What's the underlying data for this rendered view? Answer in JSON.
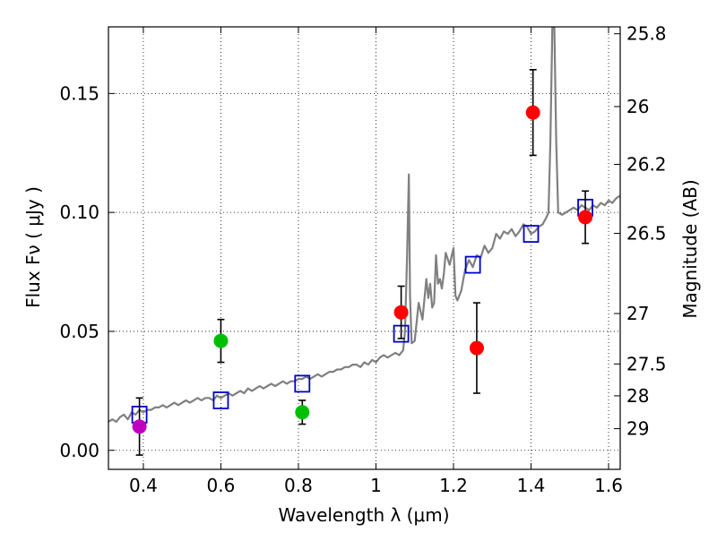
{
  "chart_data": {
    "type": "scatter",
    "xlabel": "Wavelength  λ (μm)",
    "ylabel": "Flux  Fν  ( μJy )",
    "y2label": "Magnitude (AB)",
    "xlim": [
      0.31,
      1.63
    ],
    "ylim": [
      -0.008,
      0.178
    ],
    "x_ticks": [
      0.4,
      0.6,
      0.8,
      1.0,
      1.2,
      1.4,
      1.6
    ],
    "x_tick_labels": [
      "0.4",
      "0.6",
      "0.8",
      "1",
      "1.2",
      "1.4",
      "1.6"
    ],
    "y_ticks": [
      0.0,
      0.05,
      0.1,
      0.15
    ],
    "y_tick_labels": [
      "0.00",
      "0.05",
      "0.10",
      "0.15"
    ],
    "mag_ticks": [
      {
        "label": "25.8",
        "flux": 0.1751
      },
      {
        "label": "26",
        "flux": 0.1445
      },
      {
        "label": "26.2",
        "flux": 0.1202
      },
      {
        "label": "26.5",
        "flux": 0.0912
      },
      {
        "label": "27",
        "flux": 0.0575
      },
      {
        "label": "27.5",
        "flux": 0.0363
      },
      {
        "label": "28",
        "flux": 0.0229
      },
      {
        "label": "29",
        "flux": 0.0091
      }
    ],
    "grid": true,
    "colors": {
      "model": "#808080",
      "model_photometry": "#0000cc",
      "magenta": "#bf00bf",
      "green": "#00bf00",
      "red": "#ff0000",
      "errorbar": "#000000"
    },
    "series": [
      {
        "name": "Model SED",
        "style": "line",
        "color": "#808080",
        "x": [
          0.31,
          0.32,
          0.33,
          0.34,
          0.35,
          0.36,
          0.37,
          0.38,
          0.39,
          0.4,
          0.41,
          0.42,
          0.43,
          0.44,
          0.45,
          0.46,
          0.47,
          0.48,
          0.49,
          0.5,
          0.51,
          0.52,
          0.53,
          0.54,
          0.55,
          0.56,
          0.57,
          0.58,
          0.59,
          0.6,
          0.61,
          0.62,
          0.63,
          0.64,
          0.65,
          0.66,
          0.67,
          0.68,
          0.69,
          0.7,
          0.71,
          0.72,
          0.73,
          0.74,
          0.75,
          0.76,
          0.77,
          0.78,
          0.79,
          0.8,
          0.81,
          0.82,
          0.83,
          0.84,
          0.85,
          0.86,
          0.87,
          0.88,
          0.89,
          0.9,
          0.91,
          0.92,
          0.93,
          0.94,
          0.95,
          0.96,
          0.97,
          0.98,
          0.99,
          1.0,
          1.01,
          1.02,
          1.03,
          1.04,
          1.05,
          1.06,
          1.07,
          1.075,
          1.08,
          1.085,
          1.088,
          1.092,
          1.1,
          1.11,
          1.12,
          1.13,
          1.135,
          1.14,
          1.145,
          1.15,
          1.155,
          1.16,
          1.165,
          1.17,
          1.175,
          1.18,
          1.19,
          1.2,
          1.205,
          1.21,
          1.22,
          1.23,
          1.24,
          1.25,
          1.26,
          1.27,
          1.28,
          1.29,
          1.3,
          1.31,
          1.32,
          1.33,
          1.34,
          1.35,
          1.36,
          1.37,
          1.38,
          1.39,
          1.4,
          1.41,
          1.42,
          1.43,
          1.44,
          1.445,
          1.45,
          1.455,
          1.46,
          1.465,
          1.47,
          1.48,
          1.49,
          1.5,
          1.51,
          1.52,
          1.53,
          1.54,
          1.55,
          1.56,
          1.57,
          1.58,
          1.59,
          1.6,
          1.61,
          1.62,
          1.63
        ],
        "y": [
          0.012,
          0.013,
          0.012,
          0.014,
          0.015,
          0.013,
          0.016,
          0.015,
          0.017,
          0.016,
          0.017,
          0.017,
          0.018,
          0.018,
          0.019,
          0.018,
          0.019,
          0.02,
          0.019,
          0.02,
          0.021,
          0.02,
          0.021,
          0.022,
          0.021,
          0.022,
          0.022,
          0.021,
          0.023,
          0.022,
          0.023,
          0.024,
          0.023,
          0.024,
          0.025,
          0.024,
          0.026,
          0.025,
          0.026,
          0.027,
          0.026,
          0.027,
          0.028,
          0.027,
          0.028,
          0.029,
          0.028,
          0.029,
          0.029,
          0.03,
          0.03,
          0.031,
          0.03,
          0.031,
          0.032,
          0.031,
          0.032,
          0.033,
          0.033,
          0.034,
          0.034,
          0.035,
          0.035,
          0.036,
          0.036,
          0.035,
          0.037,
          0.036,
          0.038,
          0.037,
          0.039,
          0.04,
          0.039,
          0.04,
          0.041,
          0.04,
          0.042,
          0.05,
          0.08,
          0.116,
          0.065,
          0.045,
          0.046,
          0.062,
          0.055,
          0.072,
          0.064,
          0.07,
          0.06,
          0.062,
          0.082,
          0.07,
          0.072,
          0.068,
          0.074,
          0.083,
          0.078,
          0.085,
          0.065,
          0.063,
          0.067,
          0.076,
          0.08,
          0.077,
          0.082,
          0.081,
          0.086,
          0.083,
          0.085,
          0.091,
          0.089,
          0.092,
          0.091,
          0.093,
          0.09,
          0.092,
          0.095,
          0.094,
          0.091,
          0.092,
          0.094,
          0.095,
          0.098,
          0.1,
          0.13,
          0.178,
          0.178,
          0.13,
          0.1,
          0.099,
          0.1,
          0.101,
          0.102,
          0.101,
          0.103,
          0.102,
          0.101,
          0.103,
          0.102,
          0.104,
          0.103,
          0.105,
          0.104,
          0.106,
          0.107
        ]
      },
      {
        "name": "Model photometry",
        "style": "open-square",
        "color": "#0000cc",
        "x": [
          0.39,
          0.6,
          0.81,
          1.065,
          1.25,
          1.4,
          1.54
        ],
        "y": [
          0.015,
          0.021,
          0.028,
          0.049,
          0.078,
          0.091,
          0.102
        ]
      },
      {
        "name": "Observed (magenta)",
        "style": "filled-circle",
        "color": "#bf00bf",
        "x": [
          0.39
        ],
        "y": [
          0.01
        ],
        "yerr": [
          0.012
        ]
      },
      {
        "name": "Observed (green)",
        "style": "filled-circle",
        "color": "#00bf00",
        "x": [
          0.6,
          0.81
        ],
        "y": [
          0.046,
          0.016
        ],
        "yerr": [
          0.009,
          0.005
        ]
      },
      {
        "name": "Observed (red)",
        "style": "filled-circle",
        "color": "#ff0000",
        "x": [
          1.065,
          1.26,
          1.405,
          1.54
        ],
        "y": [
          0.058,
          0.043,
          0.142,
          0.098
        ],
        "yerr": [
          0.011,
          0.019,
          0.018,
          0.011
        ]
      }
    ]
  }
}
